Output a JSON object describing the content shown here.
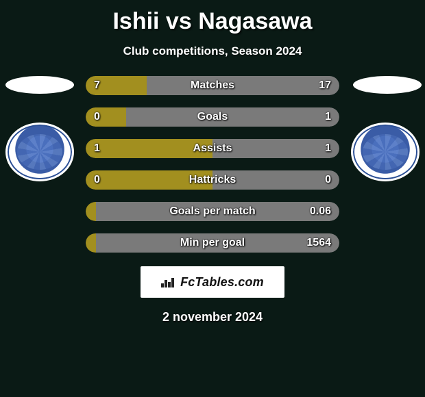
{
  "title": "Ishii vs Nagasawa",
  "subtitle": "Club competitions, Season 2024",
  "footer_date": "2 november 2024",
  "brand_text": "FcTables.com",
  "colors": {
    "left": "#a28f1f",
    "right": "#7a7a7a",
    "background": "#0a1a15"
  },
  "bars": [
    {
      "label": "Matches",
      "left": "7",
      "right": "17",
      "left_pct": 24,
      "right_pct": 76
    },
    {
      "label": "Goals",
      "left": "0",
      "right": "1",
      "left_pct": 16,
      "right_pct": 84
    },
    {
      "label": "Assists",
      "left": "1",
      "right": "1",
      "left_pct": 50,
      "right_pct": 50
    },
    {
      "label": "Hattricks",
      "left": "0",
      "right": "0",
      "left_pct": 50,
      "right_pct": 50
    },
    {
      "label": "Goals per match",
      "left": "",
      "right": "0.06",
      "left_pct": 4,
      "right_pct": 96
    },
    {
      "label": "Min per goal",
      "left": "",
      "right": "1564",
      "left_pct": 4,
      "right_pct": 96
    }
  ]
}
